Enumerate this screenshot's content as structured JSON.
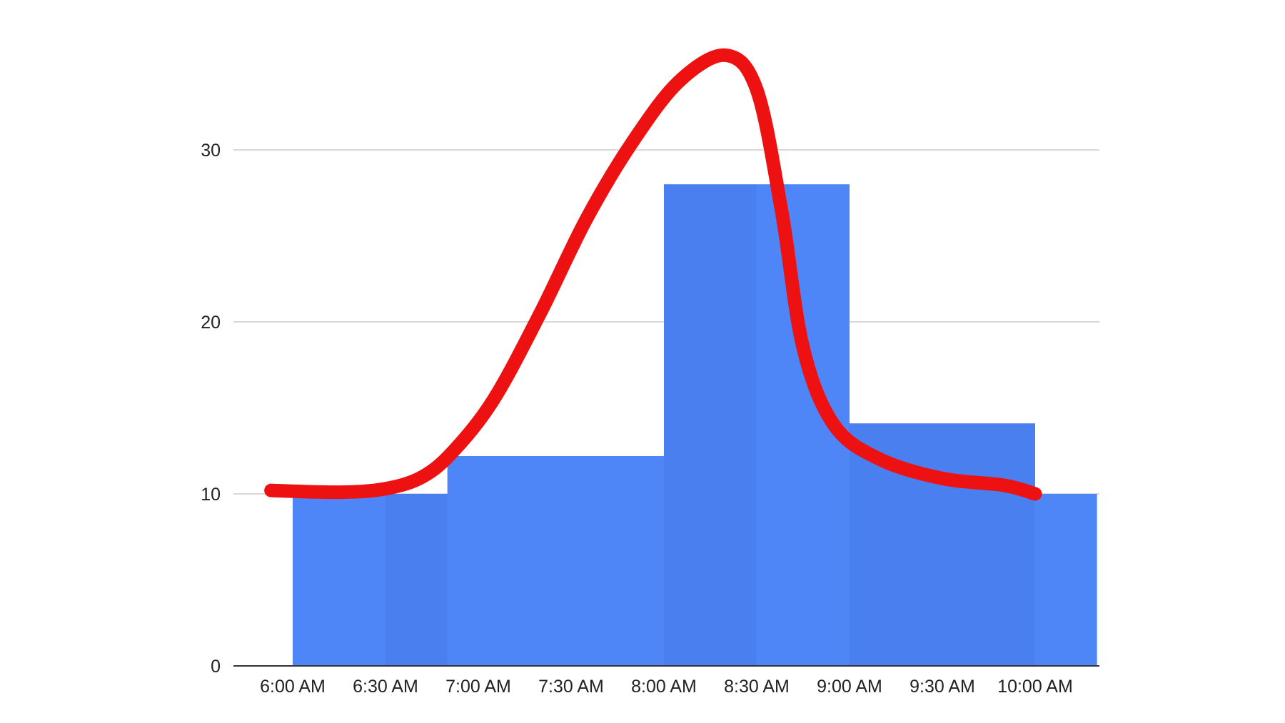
{
  "chart_data": {
    "type": "bar",
    "title": "",
    "xlabel": "",
    "ylabel": "",
    "x_tick_labels": [
      "6:00 AM",
      "6:30 AM",
      "7:00 AM",
      "7:30 AM",
      "8:00 AM",
      "8:30 AM",
      "9:00 AM",
      "9:30 AM",
      "10:00 AM"
    ],
    "y_tick_labels": [
      "0",
      "10",
      "20",
      "30"
    ],
    "y_ticks": [
      0,
      10,
      20,
      30
    ],
    "ylim": [
      0,
      36
    ],
    "grid": true,
    "legend": "none",
    "bars": [
      {
        "start": "6:00 AM",
        "end": "6:30 AM",
        "value": 10
      },
      {
        "start": "6:30 AM",
        "end": "7:00 AM",
        "value": 10
      },
      {
        "start": "6:50 AM",
        "end": "8:00 AM",
        "value": 12.2
      },
      {
        "start": "8:00 AM",
        "end": "8:30 AM",
        "value": 28
      },
      {
        "start": "8:30 AM",
        "end": "9:00 AM",
        "value": 28
      },
      {
        "start": "9:00 AM",
        "end": "10:00 AM",
        "value": 14.1
      },
      {
        "start": "10:00 AM",
        "end": "10:20 AM",
        "value": 10
      }
    ],
    "curve": {
      "type": "line",
      "smooth": true,
      "points": [
        {
          "x": "5:53 AM",
          "y": 10.2
        },
        {
          "x": "6:15 AM",
          "y": 10.1
        },
        {
          "x": "6:30 AM",
          "y": 10.3
        },
        {
          "x": "6:42 AM",
          "y": 11.0
        },
        {
          "x": "6:52 AM",
          "y": 12.5
        },
        {
          "x": "7:05 AM",
          "y": 15.5
        },
        {
          "x": "7:20 AM",
          "y": 20.5
        },
        {
          "x": "7:35 AM",
          "y": 26.0
        },
        {
          "x": "7:50 AM",
          "y": 30.5
        },
        {
          "x": "8:05 AM",
          "y": 34.0
        },
        {
          "x": "8:20 AM",
          "y": 35.5
        },
        {
          "x": "8:30 AM",
          "y": 33.5
        },
        {
          "x": "8:38 AM",
          "y": 26.5
        },
        {
          "x": "8:45 AM",
          "y": 18.5
        },
        {
          "x": "8:55 AM",
          "y": 14.0
        },
        {
          "x": "9:10 AM",
          "y": 12.0
        },
        {
          "x": "9:30 AM",
          "y": 10.9
        },
        {
          "x": "9:50 AM",
          "y": 10.5
        },
        {
          "x": "10:00 AM",
          "y": 10.0
        }
      ]
    },
    "colors": {
      "bar": "#4f86f7",
      "bar_shade": "#4a7ff0",
      "curve": "#ee1111",
      "grid": "#d9d9d9",
      "axis": "#333333",
      "text": "#222222"
    }
  }
}
